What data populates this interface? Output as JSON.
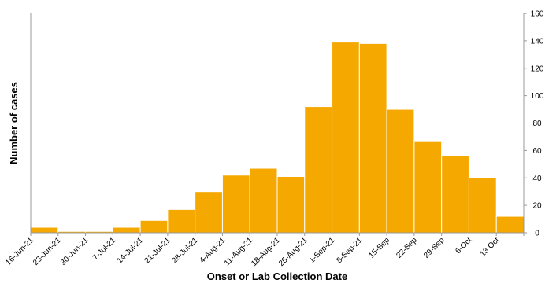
{
  "chart_data": {
    "type": "bar",
    "xlabel": "Onset or Lab Collection Date",
    "ylabel": "Number of cases",
    "categories": [
      "16-Jun-21",
      "23-Jun-21",
      "30-Jun-21",
      "7-Jul-21",
      "14-Jul-21",
      "21-Jul-21",
      "28-Jul-21",
      "4-Aug-21",
      "11-Aug-21",
      "18-Aug-21",
      "25-Aug-21",
      "1-Sep-21",
      "8-Sep-21",
      "15-Sep",
      "22-Sep",
      "29-Sep",
      "6-Oct",
      "13 Oct"
    ],
    "values": [
      4,
      1,
      1,
      4,
      9,
      17,
      30,
      42,
      47,
      41,
      92,
      139,
      138,
      90,
      67,
      56,
      40,
      12
    ],
    "ylim": [
      0,
      160
    ],
    "yticks": [
      0,
      20,
      40,
      60,
      80,
      100,
      120,
      140,
      160
    ],
    "y_axis_side": "right",
    "grid": false,
    "legend": "none",
    "colors": {
      "bar_fill": "#F5A800",
      "bar_edge": "#ffffff",
      "axis": "#999999"
    }
  }
}
